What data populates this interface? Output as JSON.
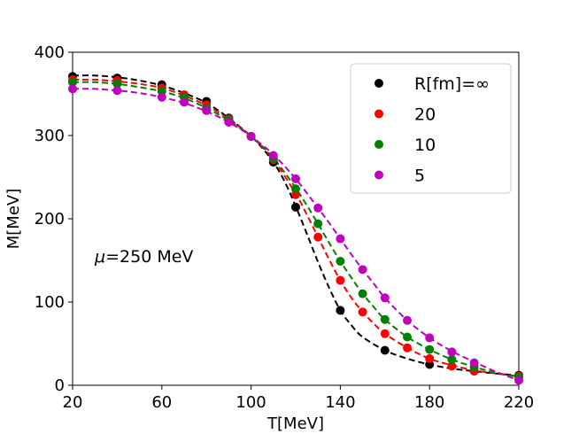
{
  "chart_data": {
    "type": "line",
    "title": "",
    "xlabel": "T[MeV]",
    "ylabel": "M[MeV]",
    "xlim": [
      20,
      220
    ],
    "ylim": [
      0,
      400
    ],
    "xticks": [
      20,
      60,
      100,
      140,
      180,
      220
    ],
    "yticks": [
      0,
      100,
      200,
      300,
      400
    ],
    "annotation": "μ=250 MeV",
    "annotation_symbol": "μ",
    "annotation_rest": "=250 MeV",
    "legend_position": "top-right",
    "grid": false,
    "series": [
      {
        "name": "R[fm]=∞",
        "color": "#000000",
        "points": [
          [
            20,
            371
          ],
          [
            40,
            369
          ],
          [
            60,
            361
          ],
          [
            80,
            341
          ],
          [
            90,
            321
          ],
          [
            100,
            299
          ],
          [
            110,
            268
          ],
          [
            120,
            214
          ],
          [
            140,
            90
          ],
          [
            160,
            42
          ],
          [
            180,
            25
          ],
          [
            200,
            17
          ],
          [
            220,
            12
          ]
        ],
        "curve": [
          [
            20,
            372
          ],
          [
            30,
            372
          ],
          [
            40,
            370
          ],
          [
            50,
            366
          ],
          [
            60,
            360
          ],
          [
            70,
            351
          ],
          [
            80,
            339
          ],
          [
            90,
            321
          ],
          [
            100,
            299
          ],
          [
            105,
            285
          ],
          [
            110,
            268
          ],
          [
            115,
            245
          ],
          [
            120,
            215
          ],
          [
            125,
            182
          ],
          [
            130,
            148
          ],
          [
            135,
            117
          ],
          [
            140,
            90
          ],
          [
            145,
            72
          ],
          [
            150,
            58
          ],
          [
            160,
            42
          ],
          [
            170,
            32
          ],
          [
            180,
            25
          ],
          [
            190,
            20
          ],
          [
            200,
            17
          ],
          [
            210,
            14
          ],
          [
            220,
            12
          ]
        ]
      },
      {
        "name": "20",
        "color": "#ff0000",
        "points": [
          [
            20,
            367
          ],
          [
            40,
            366
          ],
          [
            60,
            357
          ],
          [
            70,
            349
          ],
          [
            80,
            337
          ],
          [
            90,
            320
          ],
          [
            100,
            299
          ],
          [
            110,
            271
          ],
          [
            120,
            229
          ],
          [
            130,
            178
          ],
          [
            140,
            126
          ],
          [
            150,
            88
          ],
          [
            160,
            62
          ],
          [
            170,
            45
          ],
          [
            180,
            32
          ],
          [
            190,
            23
          ],
          [
            200,
            17
          ],
          [
            220,
            11
          ]
        ],
        "curve": [
          [
            20,
            367
          ],
          [
            30,
            367
          ],
          [
            40,
            365
          ],
          [
            50,
            362
          ],
          [
            60,
            357
          ],
          [
            70,
            348
          ],
          [
            80,
            336
          ],
          [
            90,
            320
          ],
          [
            100,
            299
          ],
          [
            110,
            271
          ],
          [
            120,
            230
          ],
          [
            125,
            205
          ],
          [
            130,
            178
          ],
          [
            135,
            151
          ],
          [
            140,
            126
          ],
          [
            145,
            105
          ],
          [
            150,
            88
          ],
          [
            155,
            74
          ],
          [
            160,
            62
          ],
          [
            170,
            45
          ],
          [
            180,
            32
          ],
          [
            190,
            24
          ],
          [
            200,
            18
          ],
          [
            210,
            14
          ],
          [
            220,
            11
          ]
        ]
      },
      {
        "name": "10",
        "color": "#008000",
        "points": [
          [
            20,
            364
          ],
          [
            40,
            362
          ],
          [
            60,
            353
          ],
          [
            70,
            346
          ],
          [
            80,
            333
          ],
          [
            90,
            319
          ],
          [
            100,
            299
          ],
          [
            110,
            272
          ],
          [
            120,
            236
          ],
          [
            130,
            194
          ],
          [
            140,
            149
          ],
          [
            150,
            110
          ],
          [
            160,
            79
          ],
          [
            170,
            58
          ],
          [
            180,
            43
          ],
          [
            190,
            31
          ],
          [
            200,
            22
          ],
          [
            220,
            10
          ]
        ],
        "curve": [
          [
            20,
            364
          ],
          [
            30,
            364
          ],
          [
            40,
            362
          ],
          [
            50,
            358
          ],
          [
            60,
            353
          ],
          [
            70,
            345
          ],
          [
            80,
            333
          ],
          [
            90,
            318
          ],
          [
            100,
            299
          ],
          [
            110,
            273
          ],
          [
            120,
            237
          ],
          [
            125,
            216
          ],
          [
            130,
            194
          ],
          [
            135,
            171
          ],
          [
            140,
            149
          ],
          [
            145,
            129
          ],
          [
            150,
            110
          ],
          [
            155,
            94
          ],
          [
            160,
            79
          ],
          [
            170,
            58
          ],
          [
            180,
            43
          ],
          [
            190,
            31
          ],
          [
            200,
            22
          ],
          [
            210,
            15
          ],
          [
            220,
            10
          ]
        ]
      },
      {
        "name": "5",
        "color": "#bf00bf",
        "points": [
          [
            20,
            356
          ],
          [
            40,
            354
          ],
          [
            60,
            346
          ],
          [
            70,
            340
          ],
          [
            80,
            330
          ],
          [
            90,
            316
          ],
          [
            100,
            299
          ],
          [
            110,
            276
          ],
          [
            120,
            248
          ],
          [
            130,
            213
          ],
          [
            140,
            176
          ],
          [
            150,
            139
          ],
          [
            160,
            105
          ],
          [
            170,
            78
          ],
          [
            180,
            57
          ],
          [
            190,
            40
          ],
          [
            200,
            27
          ],
          [
            220,
            6
          ]
        ],
        "curve": [
          [
            20,
            356
          ],
          [
            30,
            356
          ],
          [
            40,
            354
          ],
          [
            50,
            351
          ],
          [
            60,
            346
          ],
          [
            70,
            339
          ],
          [
            80,
            329
          ],
          [
            90,
            316
          ],
          [
            100,
            299
          ],
          [
            110,
            277
          ],
          [
            120,
            248
          ],
          [
            130,
            213
          ],
          [
            135,
            195
          ],
          [
            140,
            176
          ],
          [
            145,
            157
          ],
          [
            150,
            139
          ],
          [
            155,
            122
          ],
          [
            160,
            105
          ],
          [
            170,
            78
          ],
          [
            180,
            57
          ],
          [
            190,
            41
          ],
          [
            200,
            28
          ],
          [
            210,
            16
          ],
          [
            220,
            6
          ]
        ]
      }
    ]
  }
}
